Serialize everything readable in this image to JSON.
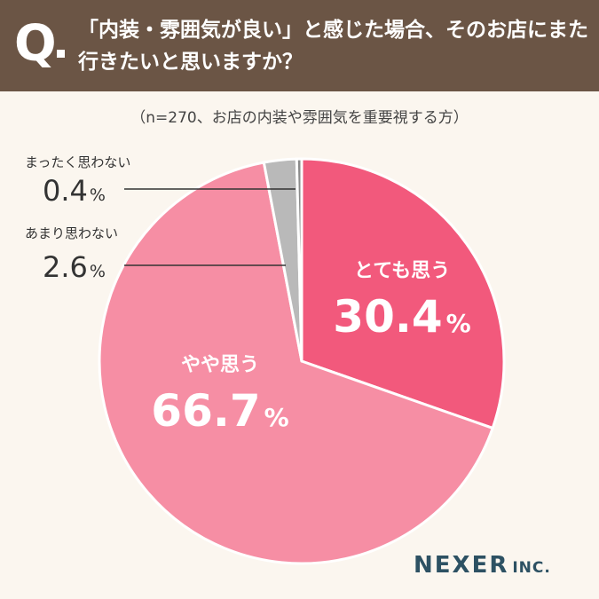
{
  "header": {
    "q_mark": "Q",
    "question": "「内装・雰囲気が良い」と感じた場合、そのお店にまた行きたいと思いますか？"
  },
  "subtitle": "（n=270、お店の内装や雰囲気を重要視する方）",
  "brand": {
    "name": "NEXER",
    "suffix": "INC."
  },
  "colors": {
    "header_bg": "#6b5545",
    "page_bg": "#fbf6ef",
    "slice_strong": "#f2597c",
    "slice_mild": "#f68ea4",
    "slice_not_much": "#b9b9b9",
    "slice_not_at_all": "#8a8a8a"
  },
  "chart_data": {
    "type": "pie",
    "title": "「内装・雰囲気が良い」と感じた場合、そのお店にまた行きたいと思いますか？",
    "subtitle": "（n=270、お店の内装や雰囲気を重要視する方）",
    "unit": "%",
    "slices": [
      {
        "label": "とても思う",
        "value": 30.4,
        "value_text": "30.4",
        "color": "#f2597c"
      },
      {
        "label": "やや思う",
        "value": 66.7,
        "value_text": "66.7",
        "color": "#f68ea4"
      },
      {
        "label": "あまり思わない",
        "value": 2.6,
        "value_text": "2.6",
        "color": "#b9b9b9"
      },
      {
        "label": "まったく思わない",
        "value": 0.4,
        "value_text": "0.4",
        "color": "#8a8a8a"
      }
    ]
  }
}
